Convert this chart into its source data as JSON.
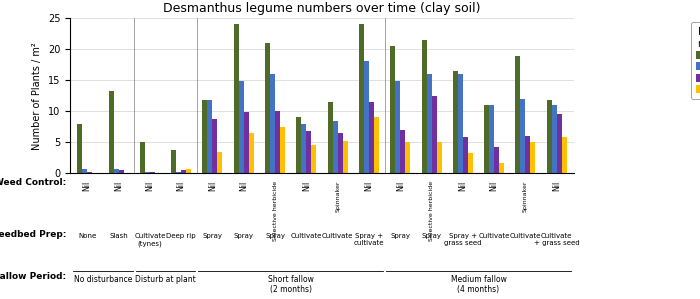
{
  "title": "Desmanthus legume numbers over time (clay soil)",
  "ylabel": "Number of Plants / m²",
  "ylim": [
    0,
    25
  ],
  "yticks": [
    0,
    5,
    10,
    15,
    20,
    25
  ],
  "colors": {
    "5 Weeks": "#4e6b28",
    "9 Weeks": "#4472c4",
    "9 Months": "#7030a0",
    "15 Months": "#ffc000"
  },
  "legend_title": "Plant\nnumbers at:",
  "groups": [
    {
      "weed_control": "Nil",
      "seedbed_prep": "None",
      "fallow_period_idx": 0,
      "values": {
        "5 Weeks": 8.0,
        "9 Weeks": 0.7,
        "9 Months": 0.3,
        "15 Months": 0
      }
    },
    {
      "weed_control": "Nil",
      "seedbed_prep": "Slash",
      "fallow_period_idx": 0,
      "values": {
        "5 Weeks": 13.2,
        "9 Weeks": 0.7,
        "9 Months": 0.5,
        "15 Months": 0
      }
    },
    {
      "weed_control": "Nil",
      "seedbed_prep": "Cultivate\n(tynes)",
      "fallow_period_idx": 1,
      "values": {
        "5 Weeks": 5.0,
        "9 Weeks": 0.2,
        "9 Months": 0.2,
        "15 Months": 0
      }
    },
    {
      "weed_control": "Nil",
      "seedbed_prep": "Deep rip",
      "fallow_period_idx": 1,
      "values": {
        "5 Weeks": 3.7,
        "9 Weeks": 0.3,
        "9 Months": 0.5,
        "15 Months": 0.7
      }
    },
    {
      "weed_control": "Nil",
      "seedbed_prep": "Spray",
      "fallow_period_idx": 2,
      "values": {
        "5 Weeks": 11.8,
        "9 Weeks": 11.8,
        "9 Months": 8.8,
        "15 Months": 3.5
      }
    },
    {
      "weed_control": "Nil",
      "seedbed_prep": "Spray",
      "fallow_period_idx": 2,
      "values": {
        "5 Weeks": 24.0,
        "9 Weeks": 14.8,
        "9 Months": 9.8,
        "15 Months": 6.5
      }
    },
    {
      "weed_control": "Selective herbicide",
      "seedbed_prep": "Spray",
      "fallow_period_idx": 2,
      "values": {
        "5 Weeks": 21.0,
        "9 Weeks": 16.0,
        "9 Months": 10.0,
        "15 Months": 7.5
      }
    },
    {
      "weed_control": "Nil",
      "seedbed_prep": "Cultivate",
      "fallow_period_idx": 2,
      "values": {
        "5 Weeks": 9.0,
        "9 Weeks": 8.0,
        "9 Months": 6.8,
        "15 Months": 4.5
      }
    },
    {
      "weed_control": "Spinnaker",
      "seedbed_prep": "Cultivate",
      "fallow_period_idx": 2,
      "values": {
        "5 Weeks": 11.5,
        "9 Weeks": 8.5,
        "9 Months": 6.5,
        "15 Months": 5.2
      }
    },
    {
      "weed_control": "Nil",
      "seedbed_prep": "Spray +\ncultivate",
      "fallow_period_idx": 2,
      "values": {
        "5 Weeks": 24.0,
        "9 Weeks": 18.0,
        "9 Months": 11.5,
        "15 Months": 9.0
      }
    },
    {
      "weed_control": "Nil",
      "seedbed_prep": "Spray",
      "fallow_period_idx": 3,
      "values": {
        "5 Weeks": 20.5,
        "9 Weeks": 14.8,
        "9 Months": 7.0,
        "15 Months": 5.0
      }
    },
    {
      "weed_control": "Selective herbicide",
      "seedbed_prep": "Spray",
      "fallow_period_idx": 3,
      "values": {
        "5 Weeks": 21.5,
        "9 Weeks": 16.0,
        "9 Months": 12.5,
        "15 Months": 5.0
      }
    },
    {
      "weed_control": "Nil",
      "seedbed_prep": "Spray +\ngrass seed",
      "fallow_period_idx": 3,
      "values": {
        "5 Weeks": 16.5,
        "9 Weeks": 16.0,
        "9 Months": 5.8,
        "15 Months": 3.3
      }
    },
    {
      "weed_control": "Nil",
      "seedbed_prep": "Cultivate",
      "fallow_period_idx": 3,
      "values": {
        "5 Weeks": 11.0,
        "9 Weeks": 11.0,
        "9 Months": 4.3,
        "15 Months": 1.7
      }
    },
    {
      "weed_control": "Spinnaker",
      "seedbed_prep": "Cultivate",
      "fallow_period_idx": 3,
      "values": {
        "5 Weeks": 18.8,
        "9 Weeks": 12.0,
        "9 Months": 6.0,
        "15 Months": 5.0
      }
    },
    {
      "weed_control": "Nil",
      "seedbed_prep": "Cultivate\n+ grass seed",
      "fallow_period_idx": 3,
      "values": {
        "5 Weeks": 11.8,
        "9 Weeks": 11.0,
        "9 Months": 9.5,
        "15 Months": 5.8
      }
    }
  ],
  "fallow_groups": [
    {
      "label": "No disturbance",
      "start": 0,
      "end": 1
    },
    {
      "label": "Disturb at plant",
      "start": 2,
      "end": 3
    },
    {
      "label": "Short fallow\n(2 months)",
      "start": 4,
      "end": 9
    },
    {
      "label": "Medium fallow\n(4 months)",
      "start": 10,
      "end": 15
    }
  ]
}
